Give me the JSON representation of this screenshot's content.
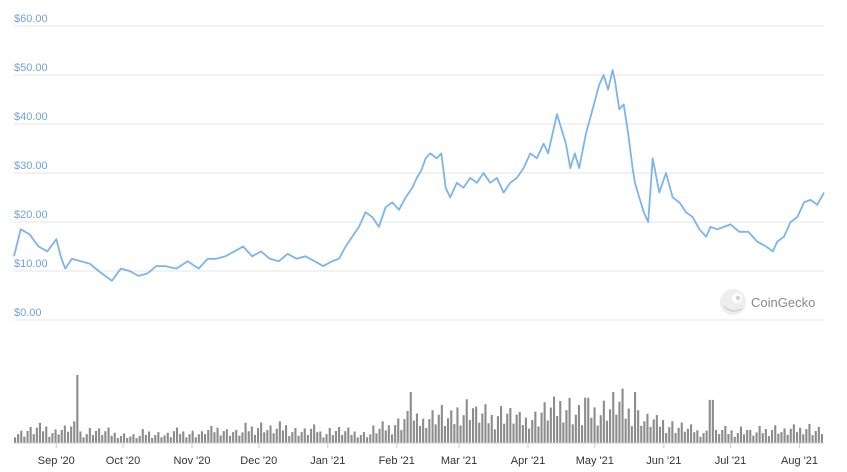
{
  "colors": {
    "price_line": "#7cb5ec",
    "volume_bar": "#8c8c8c",
    "ytick_text": "#6fa3d8",
    "grid": "#e6e6e6"
  },
  "watermark": {
    "text": "CoinGecko",
    "icon": "gecko-logo-icon"
  },
  "chart_data": [
    {
      "type": "line",
      "title": "",
      "xlabel": "",
      "ylabel": "",
      "ylim": [
        0,
        60
      ],
      "y_ticks": [
        "$0.00",
        "$10.00",
        "$20.00",
        "$30.00",
        "$40.00",
        "$50.00",
        "$60.00"
      ],
      "y_tick_values": [
        0,
        10,
        20,
        30,
        40,
        50,
        60
      ],
      "x_ticks": [
        "Sep '20",
        "Oct '20",
        "Nov '20",
        "Dec '20",
        "Jan '21",
        "Feb '21",
        "Mar '21",
        "Apr '21",
        "May '21",
        "Jun '21",
        "Jul '21",
        "Aug '21"
      ],
      "x_tick_dates": [
        "2020-09-01",
        "2020-10-01",
        "2020-11-01",
        "2020-12-01",
        "2021-01-01",
        "2021-02-01",
        "2021-03-01",
        "2021-04-01",
        "2021-05-01",
        "2021-06-01",
        "2021-07-01",
        "2021-08-01"
      ],
      "grid": true,
      "series": [
        {
          "x": [
            "2020-08-13",
            "2020-08-16",
            "2020-08-20",
            "2020-08-24",
            "2020-08-28",
            "2020-09-01",
            "2020-09-03",
            "2020-09-05",
            "2020-09-08",
            "2020-09-12",
            "2020-09-16",
            "2020-09-20",
            "2020-09-23",
            "2020-09-26",
            "2020-09-30",
            "2020-10-04",
            "2020-10-08",
            "2020-10-12",
            "2020-10-16",
            "2020-10-20",
            "2020-10-25",
            "2020-10-30",
            "2020-11-04",
            "2020-11-08",
            "2020-11-12",
            "2020-11-16",
            "2020-11-20",
            "2020-11-24",
            "2020-11-28",
            "2020-12-02",
            "2020-12-06",
            "2020-12-10",
            "2020-12-14",
            "2020-12-18",
            "2020-12-22",
            "2020-12-26",
            "2020-12-30",
            "2021-01-03",
            "2021-01-06",
            "2021-01-09",
            "2021-01-12",
            "2021-01-15",
            "2021-01-18",
            "2021-01-21",
            "2021-01-24",
            "2021-01-27",
            "2021-01-30",
            "2021-02-02",
            "2021-02-05",
            "2021-02-08",
            "2021-02-10",
            "2021-02-12",
            "2021-02-14",
            "2021-02-16",
            "2021-02-19",
            "2021-02-21",
            "2021-02-23",
            "2021-02-25",
            "2021-02-28",
            "2021-03-03",
            "2021-03-06",
            "2021-03-09",
            "2021-03-12",
            "2021-03-15",
            "2021-03-18",
            "2021-03-21",
            "2021-03-24",
            "2021-03-27",
            "2021-03-30",
            "2021-04-02",
            "2021-04-05",
            "2021-04-08",
            "2021-04-10",
            "2021-04-12",
            "2021-04-14",
            "2021-04-16",
            "2021-04-18",
            "2021-04-20",
            "2021-04-22",
            "2021-04-24",
            "2021-04-27",
            "2021-04-30",
            "2021-05-03",
            "2021-05-05",
            "2021-05-07",
            "2021-05-09",
            "2021-05-10",
            "2021-05-12",
            "2021-05-14",
            "2021-05-16",
            "2021-05-18",
            "2021-05-19",
            "2021-05-21",
            "2021-05-23",
            "2021-05-25",
            "2021-05-27",
            "2021-05-30",
            "2021-06-02",
            "2021-06-05",
            "2021-06-08",
            "2021-06-11",
            "2021-06-14",
            "2021-06-17",
            "2021-06-20",
            "2021-06-22",
            "2021-06-25",
            "2021-06-28",
            "2021-07-01",
            "2021-07-05",
            "2021-07-09",
            "2021-07-13",
            "2021-07-17",
            "2021-07-20",
            "2021-07-22",
            "2021-07-25",
            "2021-07-28",
            "2021-07-31",
            "2021-08-03",
            "2021-08-06",
            "2021-08-09",
            "2021-08-12"
          ],
          "values": [
            13.0,
            18.5,
            17.5,
            15.0,
            14.0,
            16.5,
            13.0,
            10.5,
            12.5,
            12.0,
            11.5,
            10.0,
            9.0,
            8.0,
            10.5,
            10.0,
            9.0,
            9.5,
            11.0,
            11.0,
            10.5,
            12.0,
            10.5,
            12.5,
            12.5,
            13.0,
            14.0,
            15.0,
            13.0,
            14.0,
            12.5,
            12.0,
            13.5,
            12.5,
            13.0,
            12.0,
            11.0,
            12.0,
            12.5,
            15.0,
            17.0,
            19.0,
            22.0,
            21.0,
            19.0,
            23.0,
            24.0,
            22.5,
            25.0,
            27.0,
            29.0,
            30.5,
            33.0,
            34.0,
            33.0,
            34.0,
            27.0,
            25.0,
            28.0,
            27.0,
            29.0,
            28.0,
            30.0,
            28.0,
            29.0,
            26.0,
            28.0,
            29.0,
            31.0,
            34.0,
            33.0,
            36.0,
            34.0,
            38.0,
            42.0,
            39.0,
            36.0,
            31.0,
            34.0,
            31.0,
            38.0,
            43.0,
            48.0,
            50.0,
            47.0,
            51.0,
            49.0,
            43.0,
            44.0,
            38.0,
            31.0,
            28.0,
            25.0,
            22.0,
            20.0,
            33.0,
            26.0,
            30.0,
            25.0,
            24.0,
            22.0,
            21.0,
            18.5,
            17.0,
            19.0,
            18.5,
            19.0,
            19.5,
            18.0,
            18.0,
            16.0,
            15.0,
            14.0,
            16.0,
            17.0,
            20.0,
            21.0,
            24.0,
            24.5,
            23.5,
            26.0
          ]
        }
      ]
    },
    {
      "type": "bar",
      "title": "",
      "xlabel": "",
      "ylabel": "",
      "grid": false,
      "x_range": [
        "2020-08-13",
        "2021-08-12"
      ],
      "volume_profile": {
        "note_free": true,
        "base": [
          9,
          11,
          13,
          10,
          12,
          14,
          9,
          11,
          10,
          8,
          7,
          6,
          9,
          8,
          7,
          10,
          9,
          8,
          11,
          12,
          10,
          9,
          13,
          15,
          12,
          14,
          11,
          10,
          12,
          9,
          11,
          10,
          9,
          8,
          12,
          14,
          18,
          22,
          19,
          24,
          26,
          21,
          28,
          32,
          25,
          22,
          27,
          24,
          20,
          23,
          28,
          30,
          33,
          26,
          22,
          28,
          31,
          35,
          27,
          24,
          20,
          18,
          16,
          14,
          12,
          10,
          9,
          11,
          10,
          12,
          9,
          11,
          13,
          10,
          12,
          14,
          11
        ],
        "spikes": [
          {
            "date": "2020-09-10",
            "value": 60
          },
          {
            "date": "2021-02-07",
            "value": 45
          },
          {
            "date": "2021-05-19",
            "value": 45
          },
          {
            "date": "2021-04-27",
            "value": 40
          },
          {
            "date": "2021-06-22",
            "value": 38
          }
        ]
      }
    }
  ]
}
